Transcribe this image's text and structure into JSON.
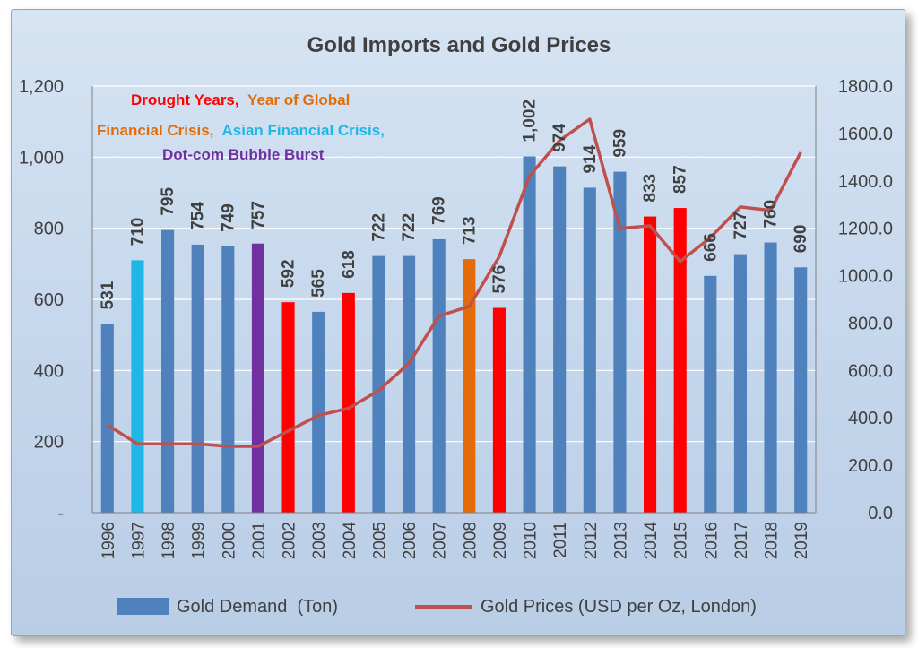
{
  "chart_data": {
    "type": "bar",
    "title": "Gold Imports and Gold Prices",
    "categories": [
      "1996",
      "1997",
      "1998",
      "1999",
      "2000",
      "2001",
      "2002",
      "2003",
      "2004",
      "2005",
      "2006",
      "2007",
      "2008",
      "2009",
      "2010",
      "2011",
      "2012",
      "2013",
      "2014",
      "2015",
      "2016",
      "2017",
      "2018",
      "2019"
    ],
    "series": [
      {
        "name": "Gold Demand  (Ton)",
        "type": "bar",
        "axis": "left",
        "values": [
          531,
          710,
          795,
          754,
          749,
          757,
          592,
          565,
          618,
          722,
          722,
          769,
          713,
          576,
          1002,
          974,
          914,
          959,
          833,
          857,
          666,
          727,
          760,
          690
        ],
        "labels": [
          "531",
          "710",
          "795",
          "754",
          "749",
          "757",
          "592",
          "565",
          "618",
          "722",
          "722",
          "769",
          "713",
          "576",
          "1,002",
          "974",
          "914",
          "959",
          "833",
          "857",
          "666",
          "727",
          "760",
          "690"
        ],
        "colors": [
          "#4f81bd",
          "#1fb6e8",
          "#4f81bd",
          "#4f81bd",
          "#4f81bd",
          "#7030a0",
          "#ff0000",
          "#4f81bd",
          "#ff0000",
          "#4f81bd",
          "#4f81bd",
          "#4f81bd",
          "#e36c09",
          "#ff0000",
          "#4f81bd",
          "#4f81bd",
          "#4f81bd",
          "#4f81bd",
          "#ff0000",
          "#ff0000",
          "#4f81bd",
          "#4f81bd",
          "#4f81bd",
          "#4f81bd"
        ]
      },
      {
        "name": "Gold Prices (USD per Oz, London)",
        "type": "line",
        "axis": "right",
        "color": "#c0504d",
        "values": [
          370,
          290,
          290,
          290,
          280,
          280,
          345,
          410,
          440,
          515,
          630,
          830,
          870,
          1080,
          1420,
          1570,
          1660,
          1200,
          1210,
          1060,
          1160,
          1290,
          1275,
          1520
        ]
      }
    ],
    "left_axis": {
      "min": 0,
      "max": 1200,
      "ticks": [
        "-",
        "200",
        "400",
        "600",
        "800",
        "1,000",
        "1,200"
      ]
    },
    "right_axis": {
      "min": 0,
      "max": 1800,
      "ticks": [
        "0.0",
        "200.0",
        "400.0",
        "600.0",
        "800.0",
        "1000.0",
        "1200.0",
        "1400.0",
        "1600.0",
        "1800.0"
      ]
    },
    "legend_position": "bottom",
    "annotation": [
      {
        "text": "Drought Years,",
        "color": "#ff0000"
      },
      {
        "text": "Year of Global",
        "color": "#e36c09"
      },
      {
        "text": "Financial Crisis,",
        "color": "#e36c09"
      },
      {
        "text": "Asian Financial Crisis,",
        "color": "#1fb6e8"
      },
      {
        "text": "Dot-com Bubble Burst",
        "color": "#7030a0"
      }
    ],
    "colors": {
      "axis_text": "#404040",
      "grid": "#ffffff",
      "title": "#404040"
    }
  }
}
